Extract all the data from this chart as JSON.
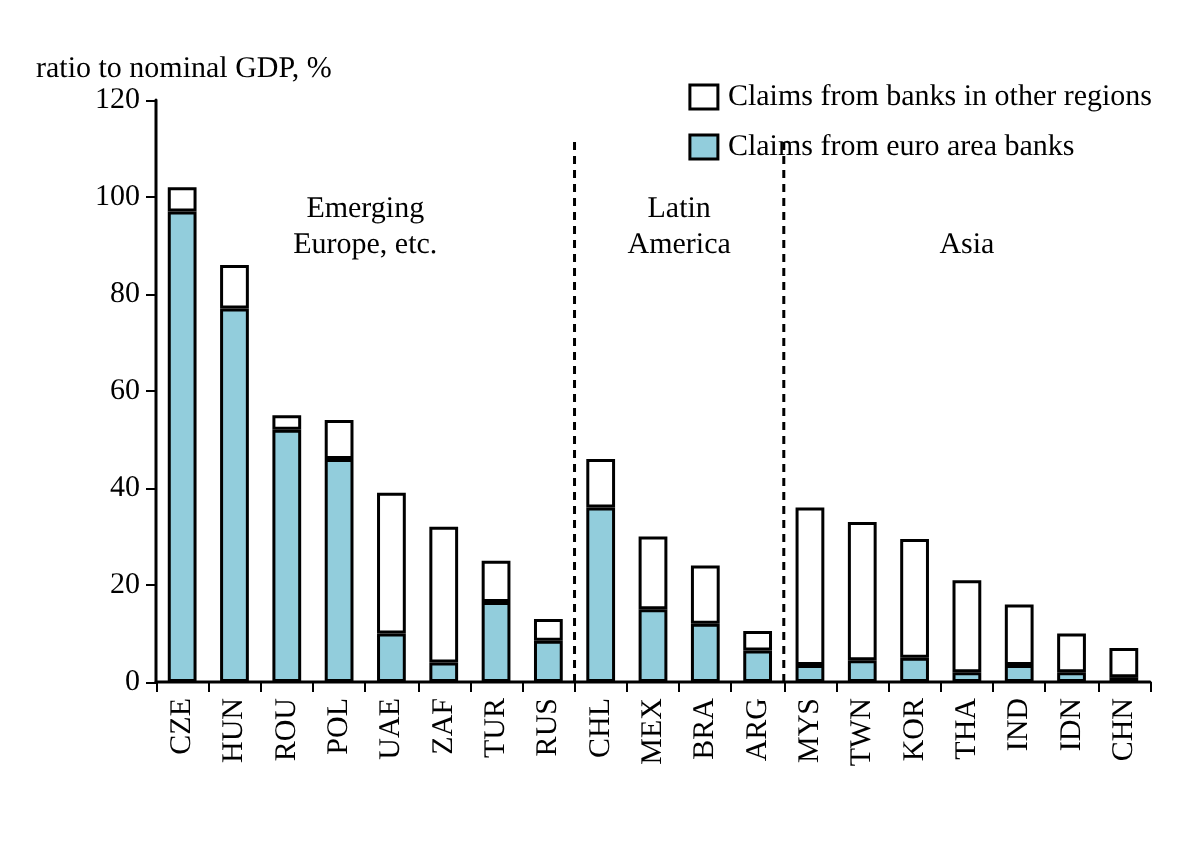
{
  "chart_data": {
    "type": "bar",
    "stacked": true,
    "ylabel": "ratio to nominal GDP, %",
    "categories": [
      "CZE",
      "HUN",
      "ROU",
      "POL",
      "UAE",
      "ZAF",
      "TUR",
      "RUS",
      "CHL",
      "MEX",
      "BRA",
      "ARG",
      "MYS",
      "TWN",
      "KOR",
      "THA",
      "IND",
      "IDN",
      "CHN"
    ],
    "series": [
      {
        "name": "Claims from euro area banks",
        "color": "#92cddc",
        "values": [
          97,
          77,
          52,
          46,
          10,
          4,
          16.5,
          8.5,
          36,
          15,
          12,
          6.5,
          3.5,
          4.5,
          5,
          2,
          3.5,
          2,
          1
        ]
      },
      {
        "name": "Claims from banks in other regions",
        "color": "#ffffff",
        "values": [
          5,
          9,
          3,
          8,
          29,
          28,
          8.5,
          4.5,
          10,
          15,
          12,
          4,
          32.5,
          28.5,
          24.5,
          19,
          12.5,
          8,
          6
        ]
      }
    ],
    "ylim": [
      0,
      120
    ],
    "yticks": [
      0,
      20,
      40,
      60,
      80,
      100,
      120
    ],
    "grid": false,
    "legend": "top right",
    "annotations": [
      "Emerging\nEurope, etc.",
      "Latin\nAmerica",
      "Asia"
    ]
  }
}
